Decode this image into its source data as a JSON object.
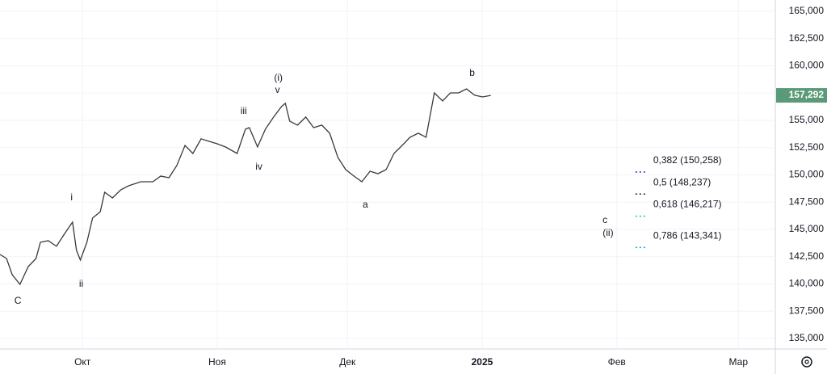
{
  "chart_data": {
    "type": "line",
    "x": [
      11.0,
      12.5,
      13.8,
      15.6,
      17.5,
      19.3,
      20.3,
      22.1,
      24.0,
      25.8,
      27.7,
      28.6,
      29.5,
      31.0,
      32.3,
      34.1,
      35.1,
      36.9,
      38.8,
      40.6,
      43.4,
      46.2,
      48.0,
      49.9,
      51.7,
      53.6,
      55.4,
      57.3,
      59.1,
      61.0,
      62.9,
      65.6,
      67.5,
      68.4,
      70.3,
      72.1,
      74.0,
      75.8,
      76.7,
      77.7,
      79.5,
      81.4,
      83.2,
      85.1,
      86.9,
      88.8,
      90.6,
      92.5,
      94.3,
      96.2,
      98.0,
      99.9,
      101.7,
      103.6,
      105.4,
      107.3,
      109.1,
      111.0,
      112.9,
      114.7,
      116.6,
      118.4,
      120.3,
      122.1,
      124.0
    ],
    "series": [
      {
        "color": "#3a3a3a",
        "values": [
          142700,
          142330,
          140850,
          139960,
          141590,
          142330,
          143820,
          143960,
          143450,
          144560,
          145670,
          143080,
          142190,
          143820,
          146040,
          146630,
          148410,
          147890,
          148630,
          149000,
          149370,
          149370,
          149890,
          149740,
          150850,
          152700,
          151960,
          153300,
          153080,
          152850,
          152560,
          151960,
          154190,
          154330,
          152560,
          154190,
          155300,
          156260,
          156560,
          154930,
          154560,
          155300,
          154330,
          154560,
          153820,
          151590,
          150480,
          149890,
          149370,
          150330,
          150110,
          150480,
          151960,
          152700,
          153450,
          153820,
          153450,
          157520,
          156780,
          157520,
          157520,
          157890,
          157300,
          157150,
          157292
        ]
      }
    ],
    "xlim": [
      11,
      189.5
    ],
    "xticks": [
      {
        "value": 30,
        "label": "Окт"
      },
      {
        "value": 61,
        "label": "Ноя"
      },
      {
        "value": 91,
        "label": "Дек"
      },
      {
        "value": 122,
        "label": "2025"
      },
      {
        "value": 153,
        "label": "Фев"
      },
      {
        "value": 181,
        "label": "Мар"
      }
    ],
    "ylim": [
      134037,
      166037
    ],
    "yticks": [
      {
        "value": 135000,
        "label": "135,000"
      },
      {
        "value": 137500,
        "label": "137,500"
      },
      {
        "value": 140000,
        "label": "140,000"
      },
      {
        "value": 142500,
        "label": "142,500"
      },
      {
        "value": 145000,
        "label": "145,000"
      },
      {
        "value": 147500,
        "label": "147,500"
      },
      {
        "value": 150000,
        "label": "150,000"
      },
      {
        "value": 152500,
        "label": "152,500"
      },
      {
        "value": 155000,
        "label": "155,000"
      },
      {
        "value": 157500,
        "label": "157,500"
      },
      {
        "value": 160000,
        "label": "160,000"
      },
      {
        "value": 162500,
        "label": "162,500"
      },
      {
        "value": 165000,
        "label": "165,000"
      }
    ],
    "grid": true,
    "last_price": {
      "value": 157292,
      "label": "157,292",
      "color": "#5b9a78"
    },
    "annotations": [
      {
        "text": "C",
        "x": 15.1,
        "y": 138410,
        "size": 20
      },
      {
        "text": "i",
        "x": 27.5,
        "y": 147890,
        "size": 16
      },
      {
        "text": "ii",
        "x": 29.7,
        "y": 139960,
        "size": 16
      },
      {
        "text": "iii",
        "x": 67.1,
        "y": 155820,
        "size": 16
      },
      {
        "text": "iv",
        "x": 70.6,
        "y": 150700,
        "size": 16
      },
      {
        "text": "(i)",
        "x": 75.1,
        "y": 158850,
        "size": 17
      },
      {
        "text": "v",
        "x": 74.9,
        "y": 157740,
        "size": 15
      },
      {
        "text": "a",
        "x": 95.1,
        "y": 147220,
        "size": 16
      },
      {
        "text": "b",
        "x": 119.7,
        "y": 159300,
        "size": 16
      },
      {
        "text": "c",
        "x": 150.3,
        "y": 145820,
        "size": 17
      },
      {
        "text": "(ii)",
        "x": 151.0,
        "y": 144630,
        "size": 17
      }
    ],
    "fib_levels": [
      {
        "label": "0,382 (150,258)",
        "value": 150258,
        "color": "#2b2bd6"
      },
      {
        "label": "0,5 (148,237)",
        "value": 148237,
        "color": "#222222"
      },
      {
        "label": "0,618 (146,217)",
        "value": 146217,
        "color": "#1fb88a"
      },
      {
        "label": "0,786 (143,341)",
        "value": 143341,
        "color": "#2a9fd6"
      }
    ],
    "fib_x": 157.3
  }
}
